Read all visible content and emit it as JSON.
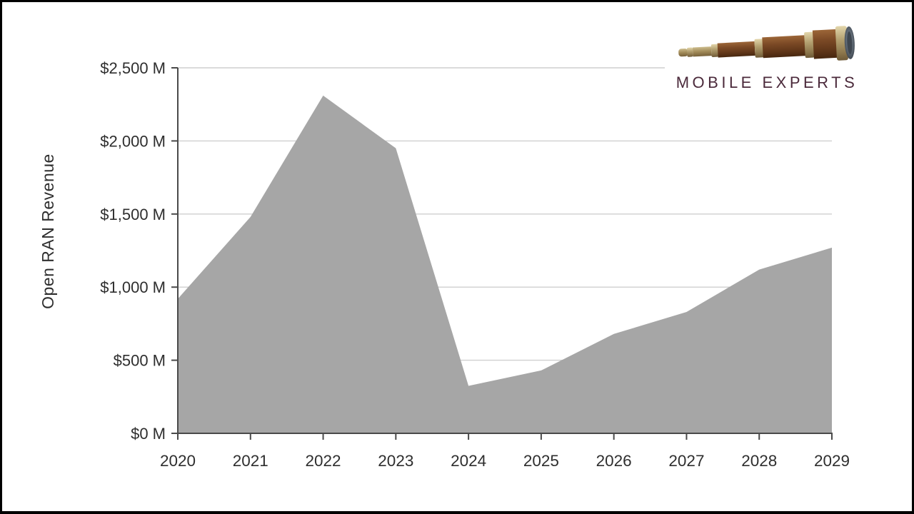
{
  "logo": {
    "text": "MOBILE EXPERTS",
    "text_color": "#4b2a3b",
    "image": "telescope"
  },
  "chart_data": {
    "type": "area",
    "title": "",
    "y_axis_title": "Open RAN Revenue",
    "categories": [
      "2020",
      "2021",
      "2022",
      "2023",
      "2024",
      "2025",
      "2026",
      "2027",
      "2028",
      "2029"
    ],
    "series": [
      {
        "name": "Open RAN Revenue ($M)",
        "values": [
          920,
          1480,
          2310,
          1950,
          325,
          430,
          680,
          830,
          1120,
          1270
        ]
      }
    ],
    "y_ticks": [
      "$0 M",
      "$500 M",
      "$1,000 M",
      "$1,500 M",
      "$2,000 M",
      "$2,500 M"
    ],
    "y_tick_step": 500,
    "ylim": [
      0,
      2500
    ],
    "grid": true,
    "legend": false,
    "area_color": "#a6a6a6",
    "gridline_color": "#cfcfcf",
    "axis_color": "#4a4a4a",
    "label_color": "#2e2e2e"
  }
}
